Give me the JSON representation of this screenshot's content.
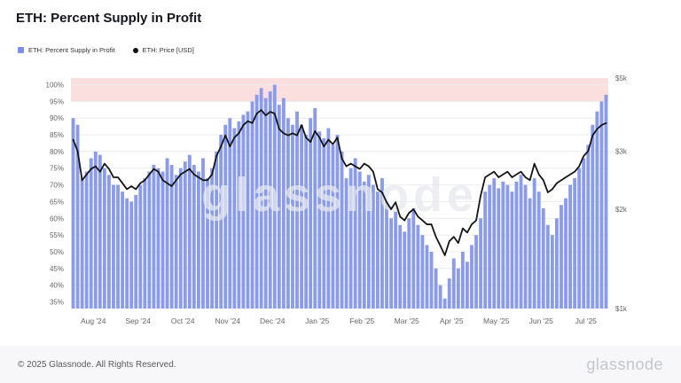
{
  "page": {
    "title": "ETH: Percent Supply in Profit",
    "footer_copyright": "© 2025 Glassnode. All Rights Reserved.",
    "footer_brand": "glassnode",
    "watermark": "glassnode"
  },
  "legend": [
    {
      "label": "ETH: Percent Supply in Profit",
      "color": "#7b8ff0",
      "shape": "square"
    },
    {
      "label": "ETH: Price [USD]",
      "color": "#111111",
      "shape": "circle"
    }
  ],
  "chart_data": {
    "type": "bar",
    "title": "ETH: Percent Supply in Profit",
    "x_tick_labels": [
      "Aug '24",
      "Sep '24",
      "Oct '24",
      "Nov '24",
      "Dec '24",
      "Jan '25",
      "Feb '25",
      "Mar '25",
      "Apr '25",
      "May '25",
      "Jun '25",
      "Jul '25"
    ],
    "left_axis": {
      "unit": "%",
      "ticks": [
        35,
        40,
        45,
        50,
        55,
        60,
        65,
        70,
        75,
        80,
        85,
        90,
        95,
        100
      ],
      "range": [
        33,
        102
      ]
    },
    "right_axis": {
      "unit": "USD",
      "scale": "log",
      "range": [
        1000,
        5000
      ],
      "ticks": [
        {
          "label": "$1k",
          "value": 1000
        },
        {
          "label": "$2k",
          "value": 2000
        },
        {
          "label": "$3k",
          "value": 3000
        },
        {
          "label": "$5k",
          "value": 5000
        }
      ]
    },
    "highlight_band": {
      "from": 95,
      "to": 102,
      "color": "#fbdfdf"
    },
    "grid": true,
    "legend_position": "top-left",
    "series": [
      {
        "name": "ETH: Percent Supply in Profit",
        "type": "bar",
        "axis": "left",
        "color": "#8b9bec",
        "values": [
          90,
          88,
          72,
          74,
          78,
          80,
          79,
          75,
          73,
          70,
          70,
          68,
          66,
          65,
          67,
          70,
          72,
          74,
          76,
          75,
          74,
          78,
          76,
          73,
          75,
          77,
          79,
          76,
          74,
          78,
          72,
          75,
          80,
          85,
          88,
          90,
          87,
          89,
          91,
          92,
          95,
          97,
          99,
          96,
          98,
          100,
          94,
          96,
          90,
          88,
          92,
          88,
          85,
          90,
          93,
          86,
          84,
          87,
          82,
          85,
          80,
          72,
          75,
          78,
          74,
          71,
          73,
          70,
          68,
          72,
          65,
          60,
          62,
          58,
          56,
          60,
          63,
          58,
          55,
          52,
          50,
          45,
          40,
          36,
          42,
          48,
          45,
          50,
          47,
          52,
          55,
          60,
          68,
          70,
          72,
          69,
          71,
          70,
          68,
          71,
          73,
          70,
          66,
          72,
          68,
          63,
          58,
          55,
          60,
          64,
          66,
          70,
          72,
          75,
          78,
          82,
          88,
          92,
          95,
          97
        ]
      },
      {
        "name": "ETH: Price [USD]",
        "type": "line",
        "axis": "right",
        "color": "#151515",
        "values": [
          3250,
          3000,
          2450,
          2550,
          2650,
          2700,
          2600,
          2750,
          2650,
          2500,
          2500,
          2400,
          2300,
          2350,
          2300,
          2400,
          2450,
          2550,
          2650,
          2600,
          2450,
          2400,
          2350,
          2450,
          2550,
          2600,
          2650,
          2550,
          2500,
          2450,
          2450,
          2550,
          2900,
          3100,
          3350,
          3100,
          3300,
          3400,
          3600,
          3700,
          3650,
          3900,
          4000,
          3850,
          3950,
          3900,
          3500,
          3400,
          3350,
          3400,
          3350,
          3600,
          3300,
          3200,
          3450,
          3300,
          3100,
          3250,
          3150,
          3300,
          2850,
          2700,
          2750,
          2700,
          2650,
          2750,
          2700,
          2600,
          2300,
          2250,
          2100,
          2000,
          2100,
          1900,
          1850,
          1950,
          2000,
          1900,
          1850,
          1800,
          1800,
          1650,
          1550,
          1450,
          1600,
          1650,
          1580,
          1750,
          1700,
          1800,
          1850,
          2200,
          2500,
          2550,
          2600,
          2500,
          2550,
          2600,
          2500,
          2550,
          2600,
          2500,
          2450,
          2750,
          2550,
          2450,
          2250,
          2300,
          2400,
          2450,
          2500,
          2550,
          2600,
          2700,
          2900,
          3000,
          3350,
          3500,
          3600,
          3650
        ]
      }
    ]
  }
}
